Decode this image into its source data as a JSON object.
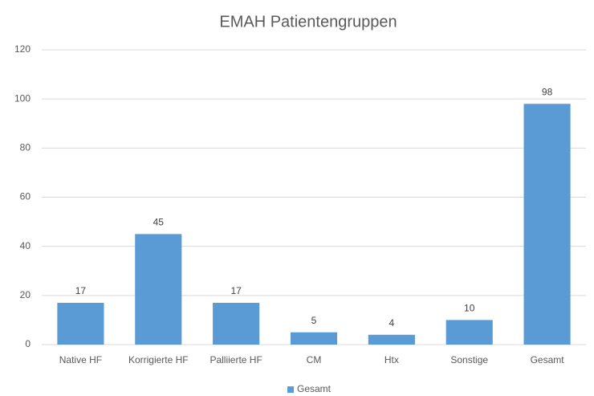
{
  "chart_data": {
    "type": "bar",
    "title": "EMAH Patientengruppen",
    "categories": [
      "Native HF",
      "Korrigierte HF",
      "Palliierte HF",
      "CM",
      "Htx",
      "Sonstige",
      "Gesamt"
    ],
    "series": [
      {
        "name": "Gesamt",
        "color": "#5b9bd5",
        "values": [
          17,
          45,
          17,
          5,
          4,
          10,
          98
        ]
      }
    ],
    "ylim": [
      0,
      120
    ],
    "yticks": [
      0,
      20,
      40,
      60,
      80,
      100,
      120
    ],
    "grid": true,
    "legend": "bottom"
  }
}
